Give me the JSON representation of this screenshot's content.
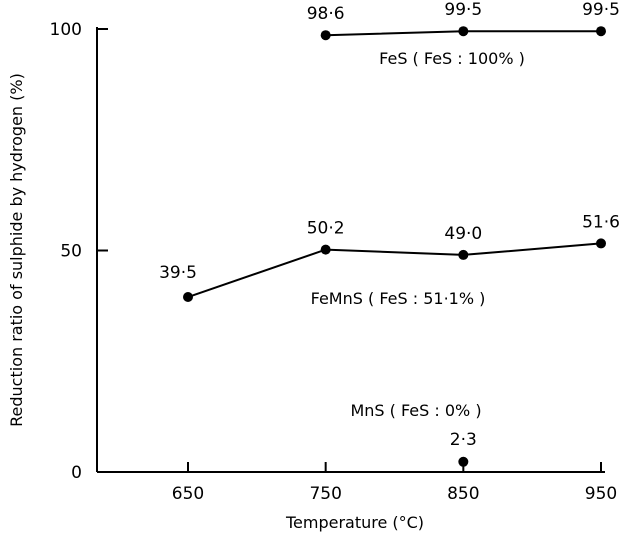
{
  "chart_data": {
    "type": "line",
    "xlabel": "Temperature (°C)",
    "ylabel": "Reduction ratio of sulphide by hydrogen (%)",
    "x_ticks": [
      "650",
      "750",
      "850",
      "950"
    ],
    "y_ticks": [
      "0",
      "50",
      "100"
    ],
    "xlim": [
      570,
      980
    ],
    "ylim": [
      0,
      100
    ],
    "grid": false,
    "series": [
      {
        "name": "FeS ( FeS : 100% )",
        "x": [
          750,
          850,
          950
        ],
        "y": [
          98.6,
          99.5,
          99.5
        ],
        "labels": [
          "98·6",
          "99·5",
          "99·5"
        ]
      },
      {
        "name": "FeMnS ( FeS : 51·1% )",
        "x": [
          650,
          750,
          850,
          950
        ],
        "y": [
          39.5,
          50.2,
          49.0,
          51.6
        ],
        "labels": [
          "39·5",
          "50·2",
          "49·0",
          "51·6"
        ]
      },
      {
        "name": "MnS ( FeS : 0% )",
        "x": [
          850
        ],
        "y": [
          2.3
        ],
        "labels": [
          "2·3"
        ]
      }
    ]
  }
}
